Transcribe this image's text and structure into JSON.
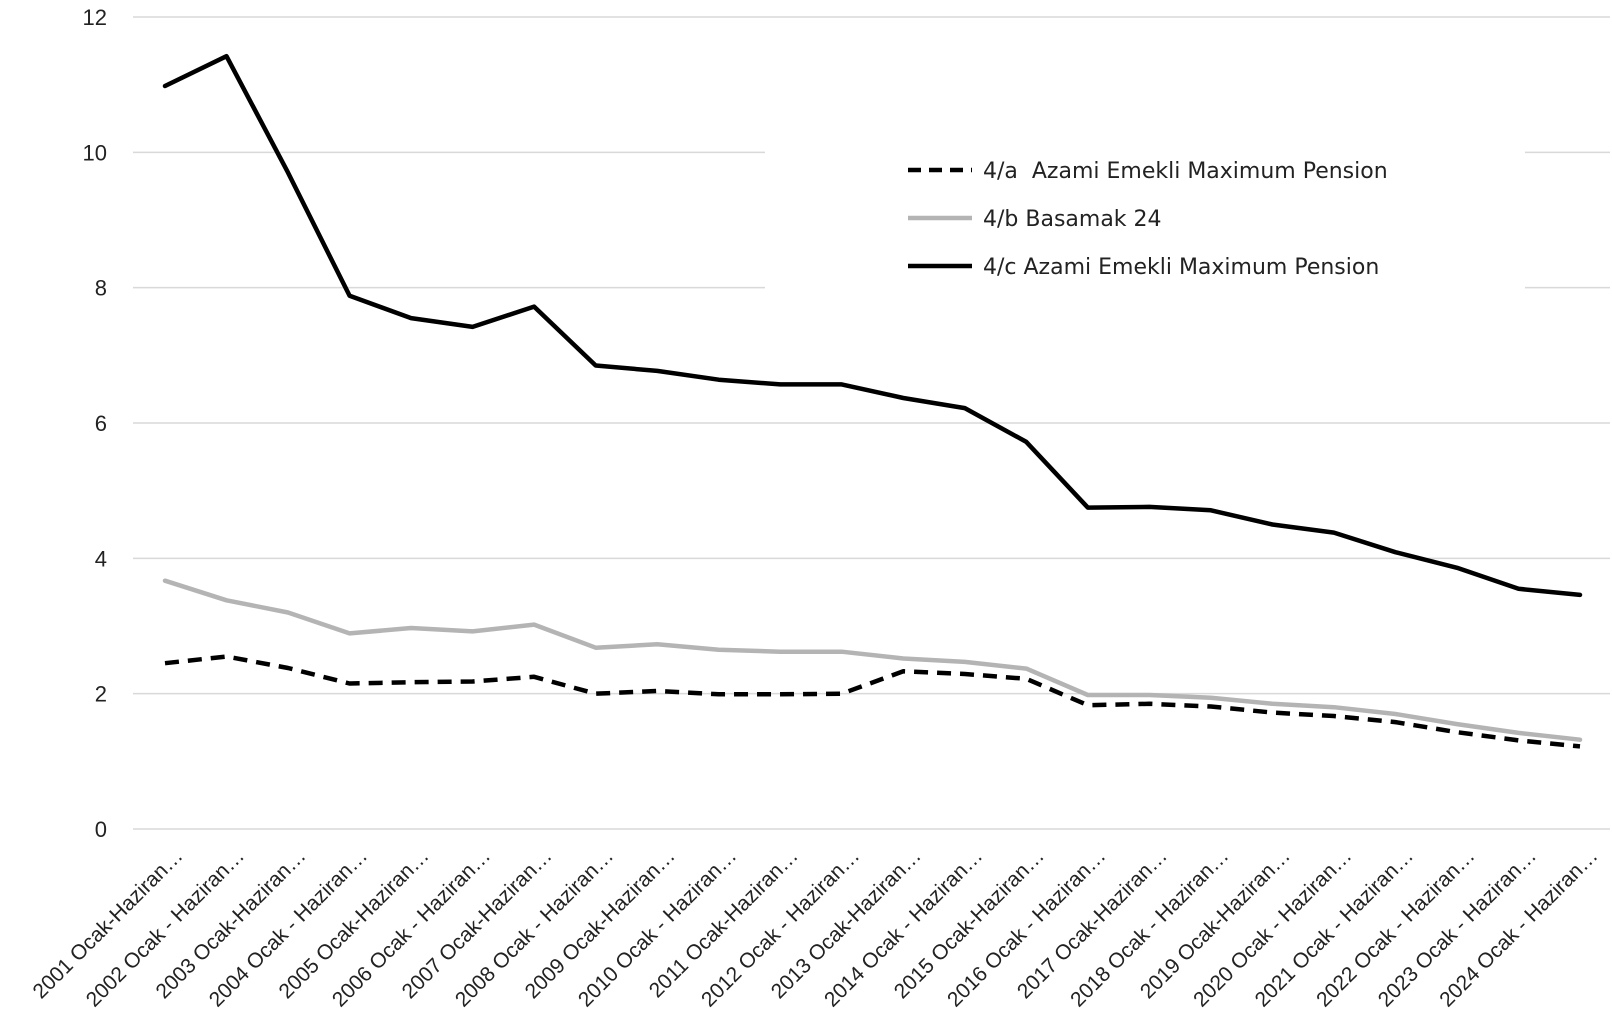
{
  "chart_data": {
    "type": "line",
    "title": "",
    "xlabel": "",
    "ylabel": "",
    "ylim": [
      0,
      12
    ],
    "yticks": [
      "0",
      "2",
      "4",
      "6",
      "8",
      "10",
      "12"
    ],
    "grid": "horizontal",
    "legend_position": "top-right",
    "categories": [
      "2001 Ocak-Haziran…",
      "2002 Ocak - Haziran…",
      "2003 Ocak-Haziran…",
      "2004 Ocak - Haziran…",
      "2005 Ocak-Haziran…",
      "2006 Ocak - Haziran…",
      "2007 Ocak-Haziran…",
      "2008 Ocak - Haziran…",
      "2009 Ocak-Haziran…",
      "2010 Ocak - Haziran…",
      "2011 Ocak-Haziran…",
      "2012 Ocak - Haziran…",
      "2013 Ocak-Haziran…",
      "2014 Ocak - Haziran…",
      "2015 Ocak-Haziran…",
      "2016 Ocak - Haziran…",
      "2017 Ocak-Haziran…",
      "2018 Ocak - Haziran…",
      "2019 Ocak-Haziran…",
      "2020 Ocak - Haziran…",
      "2021 Ocak - Haziran…",
      "2022 Ocak - Haziran…",
      "2023 Ocak - Haziran…",
      "2024 Ocak - Haziran…"
    ],
    "series": [
      {
        "name": "4/a  Azami Emekli Maximum Pension",
        "style": "dashed",
        "color": "#000000",
        "values": [
          2.45,
          2.55,
          2.38,
          2.15,
          2.17,
          2.18,
          2.25,
          2.0,
          2.04,
          1.99,
          1.99,
          2.0,
          2.33,
          2.29,
          2.22,
          1.83,
          1.85,
          1.81,
          1.72,
          1.67,
          1.58,
          1.43,
          1.31,
          1.22
        ]
      },
      {
        "name": "4/b Basamak 24",
        "style": "solid",
        "color": "#b4b4b4",
        "values": [
          3.67,
          3.38,
          3.2,
          2.89,
          2.97,
          2.92,
          3.02,
          2.68,
          2.73,
          2.65,
          2.62,
          2.62,
          2.52,
          2.47,
          2.37,
          1.98,
          1.98,
          1.94,
          1.85,
          1.8,
          1.7,
          1.55,
          1.42,
          1.32
        ]
      },
      {
        "name": "4/c Azami Emekli Maximum Pension",
        "style": "solid",
        "color": "#000000",
        "values": [
          10.98,
          11.42,
          9.7,
          7.88,
          7.55,
          7.42,
          7.72,
          6.85,
          6.77,
          6.64,
          6.57,
          6.57,
          6.37,
          6.22,
          5.72,
          4.75,
          4.76,
          4.71,
          4.5,
          4.38,
          4.09,
          3.86,
          3.55,
          3.46
        ]
      }
    ]
  }
}
